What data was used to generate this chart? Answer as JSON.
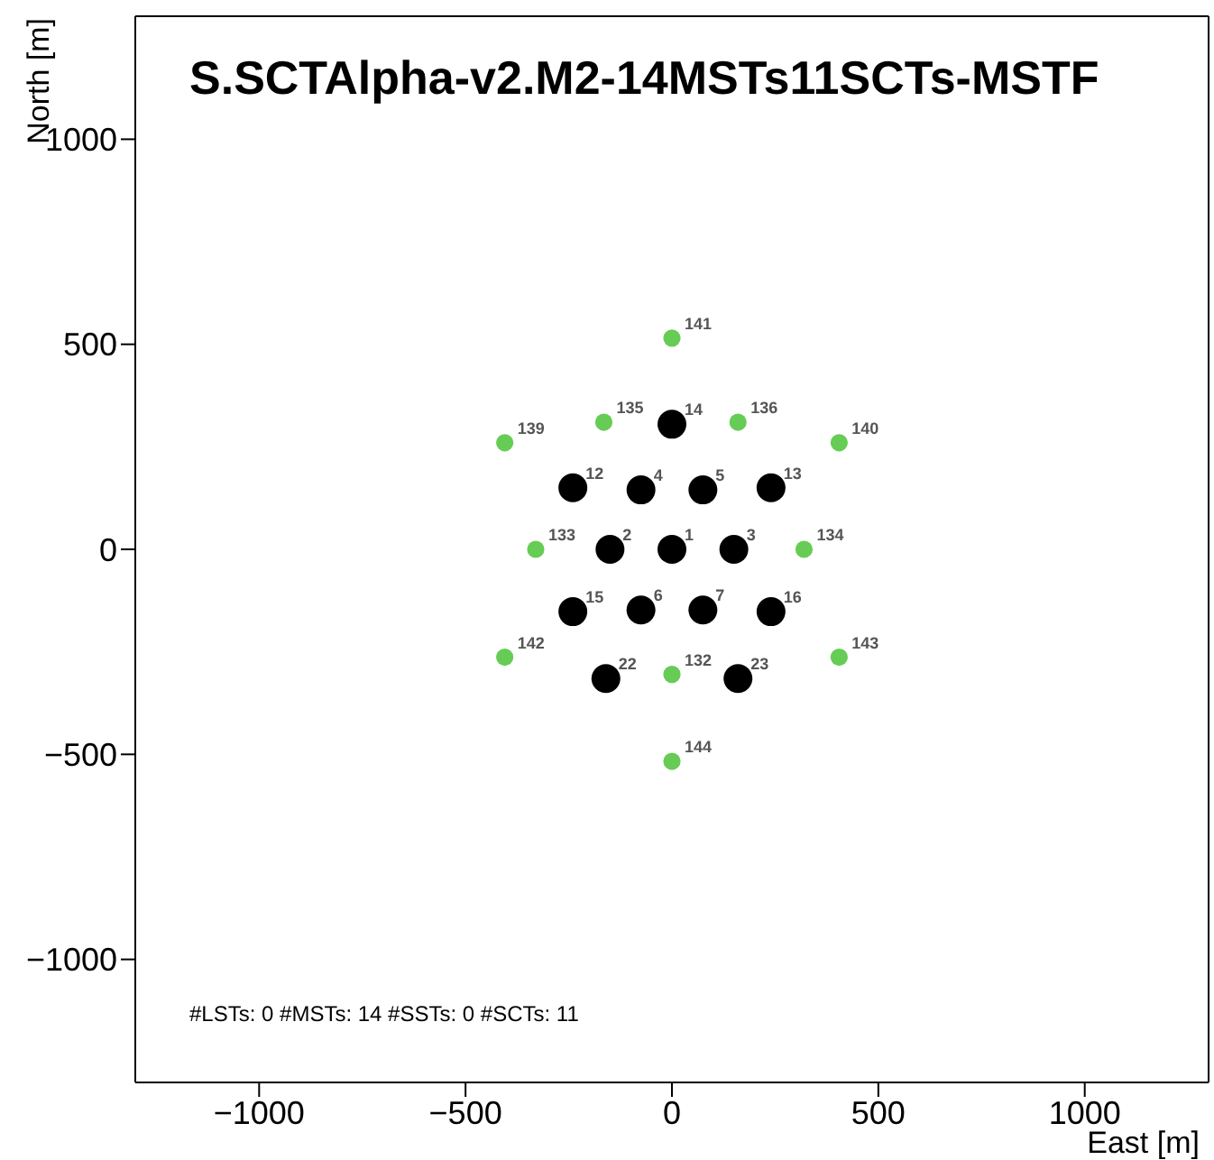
{
  "chart_data": {
    "type": "scatter",
    "title": "S.SCTAlpha-v2.M2-14MSTs11SCTs-MSTF",
    "xlabel": "East [m]",
    "ylabel": "North [m]",
    "series": [
      {
        "color": "#000000",
        "x": [
          0,
          -150,
          150,
          -75,
          75,
          -75,
          75,
          -240,
          240,
          0,
          -240,
          240,
          -160,
          160
        ],
        "values": [
          0,
          0,
          0,
          145,
          145,
          -148,
          -148,
          150,
          150,
          305,
          -152,
          -152,
          -315,
          -315
        ]
      },
      {
        "color": "#66cc55",
        "x": [
          0,
          -330,
          320,
          -165,
          160,
          -405,
          405,
          0,
          -405,
          405,
          0
        ],
        "values": [
          -305,
          0,
          0,
          310,
          310,
          260,
          260,
          515,
          -263,
          -263,
          -517
        ]
      }
    ],
    "xlim": [
      -1300,
      1300
    ],
    "ylim": [
      -1300,
      1300
    ],
    "xticks": [
      -1000,
      -500,
      0,
      500,
      1000
    ],
    "yticks": [
      -1000,
      -500,
      0,
      500,
      1000
    ],
    "marker": "circle",
    "annotations": [
      {
        "text": "2",
        "x": -150,
        "y": 0
      },
      {
        "text": "3",
        "x": 150,
        "y": 0
      },
      {
        "text": "1",
        "x": 0,
        "y": 0
      },
      {
        "text": "4",
        "x": -75,
        "y": 145
      },
      {
        "text": "5",
        "x": 75,
        "y": 145
      },
      {
        "text": "6",
        "x": -75,
        "y": -148
      },
      {
        "text": "7",
        "x": 75,
        "y": -148
      },
      {
        "text": "12",
        "x": -240,
        "y": 150
      },
      {
        "text": "13",
        "x": 240,
        "y": 150
      },
      {
        "text": "14",
        "x": 0,
        "y": 305
      },
      {
        "text": "15",
        "x": -240,
        "y": -152
      },
      {
        "text": "16",
        "x": 240,
        "y": -152
      },
      {
        "text": "22",
        "x": -160,
        "y": -315
      },
      {
        "text": "23",
        "x": 160,
        "y": -315
      },
      {
        "text": "132",
        "x": 0,
        "y": -305
      },
      {
        "text": "133",
        "x": -330,
        "y": 0
      },
      {
        "text": "134",
        "x": 320,
        "y": 0
      },
      {
        "text": "135",
        "x": -165,
        "y": 310
      },
      {
        "text": "136",
        "x": 160,
        "y": 310
      },
      {
        "text": "139",
        "x": -405,
        "y": 260
      },
      {
        "text": "140",
        "x": 405,
        "y": 260
      },
      {
        "text": "141",
        "x": 0,
        "y": 515
      },
      {
        "text": "142",
        "x": -405,
        "y": -263
      },
      {
        "text": "143",
        "x": 405,
        "y": -263
      },
      {
        "text": "144",
        "x": 0,
        "y": -517
      },
      "#LSTs: 0 #MSTs: 14 #SSTs: 0 #SCTs: 11"
    ]
  }
}
